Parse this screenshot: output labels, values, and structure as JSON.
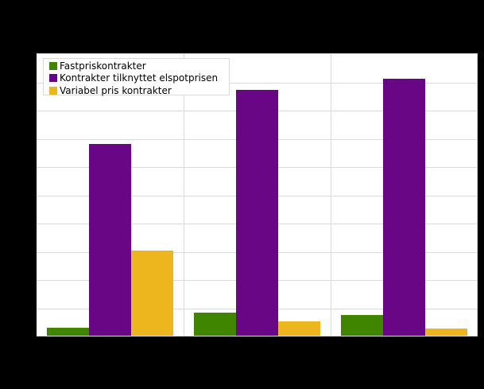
{
  "chart_data": {
    "type": "bar",
    "title": "",
    "xlabel": "",
    "ylabel": "",
    "categories": [
      "",
      "",
      ""
    ],
    "series": [
      {
        "name": "Fastpriskontrakter",
        "color": "#3F8500",
        "values": [
          0.27,
          0.83,
          0.72
        ]
      },
      {
        "name": "Kontrakter tilknyttet elspotprisen",
        "color": "#680685",
        "values": [
          6.78,
          8.71,
          9.11
        ]
      },
      {
        "name": "Variabel pris kontrakter",
        "color": "#EDB51E",
        "values": [
          3.02,
          0.5,
          0.24
        ]
      }
    ],
    "ylim": [
      0,
      10
    ],
    "y_gridlines": 10,
    "grid": true,
    "legend_position": "top-left inside plot",
    "note": "Axis tick labels and category labels are rendered black on black background and are not legible; values expressed in gridline units."
  },
  "legend": {
    "items": [
      {
        "label": "Fastpriskontrakter",
        "color": "#3F8500"
      },
      {
        "label": "Kontrakter tilknyttet elspotprisen",
        "color": "#680685"
      },
      {
        "label": "Variabel pris kontrakter",
        "color": "#EDB51E"
      }
    ]
  },
  "colors": {
    "background": "#000000",
    "plot_background": "#FFFFFF",
    "gridline": "#D9D9D9"
  }
}
